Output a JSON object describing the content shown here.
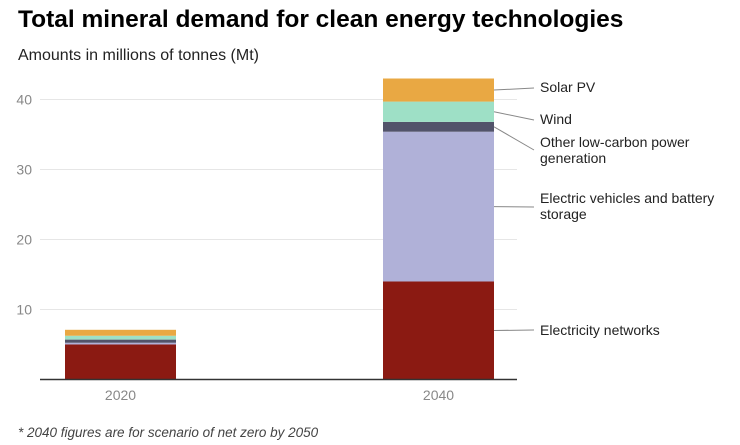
{
  "chart_data": {
    "type": "bar",
    "stacked": true,
    "title": "Total mineral demand for clean energy technologies",
    "subtitle": "Amounts in millions of tonnes (Mt)",
    "note": "* 2040 figures are for scenario of net zero by 2050",
    "categories": [
      "2020",
      "2040"
    ],
    "ylim": [
      0,
      45
    ],
    "yticks": [
      10,
      20,
      30,
      40
    ],
    "grid": true,
    "legend": "direct labels on right of 2040 bar",
    "series": [
      {
        "name": "Electricity networks",
        "color": "#8b1a12",
        "values": [
          5.0,
          14.0
        ]
      },
      {
        "name": "Electric vehicles and battery storage",
        "color": "#b0b1d8",
        "values": [
          0.25,
          21.4
        ]
      },
      {
        "name": "Other low-carbon power generation",
        "color": "#52536a",
        "values": [
          0.45,
          1.4
        ]
      },
      {
        "name": "Wind",
        "color": "#9ee0c6",
        "values": [
          0.55,
          2.9
        ]
      },
      {
        "name": "Solar PV",
        "color": "#e9a843",
        "values": [
          0.85,
          3.3
        ]
      }
    ]
  }
}
